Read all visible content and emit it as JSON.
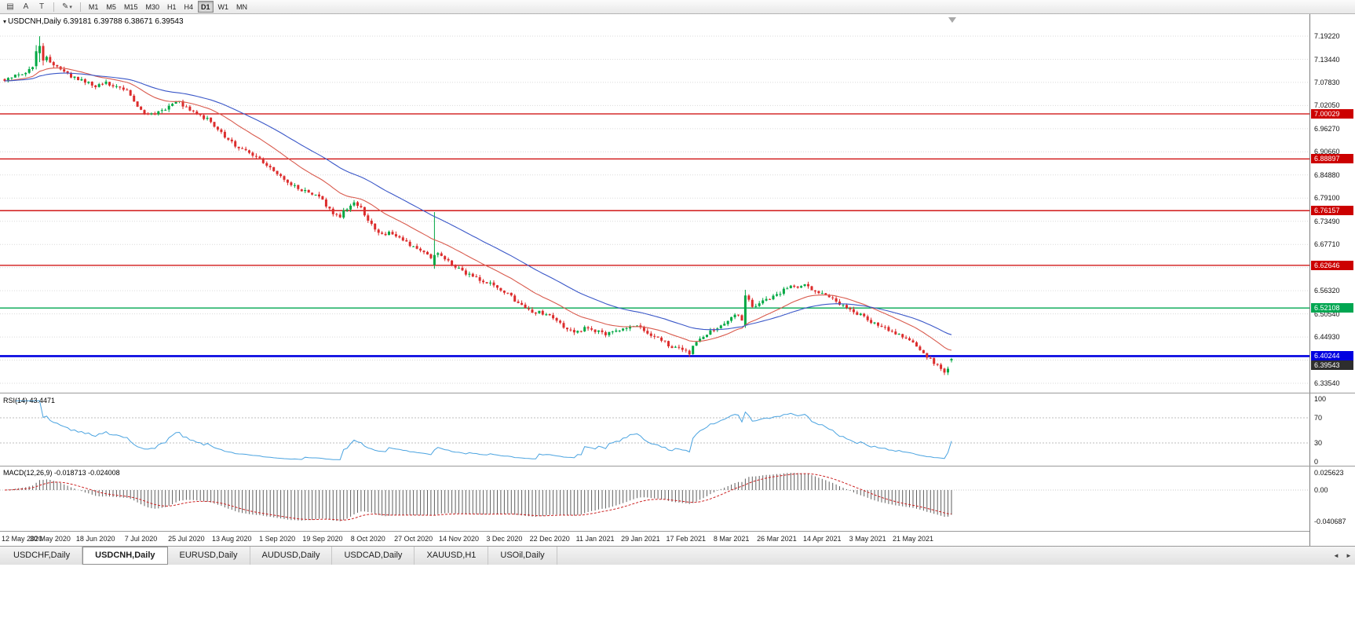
{
  "toolbar": {
    "icons": [
      {
        "name": "chart-window-icon",
        "glyph": "▤"
      },
      {
        "name": "cursor-tool-icon",
        "glyph": "A"
      },
      {
        "name": "text-tool-icon",
        "glyph": "T"
      },
      {
        "name": "draw-tool-icon",
        "glyph": "✎"
      },
      {
        "name": "dropdown-caret-icon",
        "glyph": "▾"
      }
    ],
    "timeframes": [
      {
        "label": "M1"
      },
      {
        "label": "M5"
      },
      {
        "label": "M15"
      },
      {
        "label": "M30"
      },
      {
        "label": "H1"
      },
      {
        "label": "H4"
      },
      {
        "label": "D1",
        "active": true
      },
      {
        "label": "W1"
      },
      {
        "label": "MN"
      }
    ]
  },
  "chart": {
    "dropdown_glyph": "▾",
    "symbol_period": "USDCNH,Daily",
    "ohlc_text": "6.39181 6.39788 6.38671 6.39543"
  },
  "rsi_panel": {
    "label": "RSI(14)",
    "value": "43.4471",
    "axis_labels": [
      "100",
      "70",
      "30",
      "0"
    ],
    "levels": [
      100,
      70,
      30,
      0
    ]
  },
  "macd_panel": {
    "label": "MACD(12,26,9)",
    "values": "-0.018713 -0.024008",
    "axis_labels": [
      "0.025623",
      "0.00",
      "-0.040687"
    ]
  },
  "tabs": [
    {
      "label": "USDCHF,Daily"
    },
    {
      "label": "USDCNH,Daily",
      "active": true
    },
    {
      "label": "EURUSD,Daily"
    },
    {
      "label": "AUDUSD,Daily"
    },
    {
      "label": "USDCAD,Daily"
    },
    {
      "label": "XAUUSD,H1"
    },
    {
      "label": "USOil,Daily"
    }
  ],
  "tab_scroll": {
    "left": "◄",
    "right": "►"
  },
  "chart_data": {
    "type": "candlestick",
    "symbol": "USDCNH",
    "timeframe": "Daily",
    "count": 272,
    "label_every": 13,
    "price_top": 7.1922,
    "price_bottom": 6.3354,
    "up_color": "#00a843",
    "down_color": "#dc2c2c",
    "y_labels": [
      "7.19220",
      "7.13440",
      "7.07830",
      "7.02050",
      "6.96270",
      "6.90660",
      "6.84880",
      "6.79100",
      "6.73490",
      "6.67710",
      "6.62100",
      "6.56320",
      "6.50540",
      "6.44930",
      "6.39150",
      "6.33540"
    ],
    "x_labels": [
      "12 May 2020",
      "30 May 2020",
      "18 Jun 2020",
      "7 Jul 2020",
      "25 Jul 2020",
      "13 Aug 2020",
      "1 Sep 2020",
      "19 Sep 2020",
      "8 Oct 2020",
      "27 Oct 2020",
      "14 Nov 2020",
      "3 Dec 2020",
      "22 Dec 2020",
      "11 Jan 2021",
      "29 Jan 2021",
      "17 Feb 2021",
      "8 Mar 2021",
      "26 Mar 2021",
      "14 Apr 2021",
      "3 May 2021",
      "21 May 2021"
    ],
    "hlines": [
      {
        "price": 7.00029,
        "label": "7.00029",
        "color": "#cc0000",
        "width": 1.3
      },
      {
        "price": 6.88897,
        "label": "6.88897",
        "color": "#cc0000",
        "width": 1.3
      },
      {
        "price": 6.76157,
        "label": "6.76157",
        "color": "#cc0000",
        "width": 1.3
      },
      {
        "price": 6.62646,
        "label": "6.62646",
        "color": "#cc0000",
        "width": 1.3
      },
      {
        "price": 6.52108,
        "label": "6.52108",
        "color": "#00a651",
        "width": 1.3
      },
      {
        "price": 6.40244,
        "label": "6.40244",
        "color": "#0000e0",
        "width": 2.6
      }
    ],
    "current_price": {
      "label": "6.39543",
      "price": 6.39543,
      "bg": "#2e2e2e"
    },
    "last_bar": {
      "open": 6.39181,
      "high": 6.39788,
      "low": 6.38671,
      "close": 6.39543
    },
    "price_path": [
      [
        0,
        7.085
      ],
      [
        4,
        7.098
      ],
      [
        8,
        7.112
      ],
      [
        10,
        7.165
      ],
      [
        12,
        7.14
      ],
      [
        14,
        7.118
      ],
      [
        17,
        7.103
      ],
      [
        20,
        7.089
      ],
      [
        23,
        7.081
      ],
      [
        26,
        7.068
      ],
      [
        29,
        7.076
      ],
      [
        32,
        7.07
      ],
      [
        35,
        7.058
      ],
      [
        37,
        7.031
      ],
      [
        39,
        7.006
      ],
      [
        42,
        6.999
      ],
      [
        45,
        7.008
      ],
      [
        48,
        7.024
      ],
      [
        50,
        7.031
      ],
      [
        52,
        7.014
      ],
      [
        55,
        6.999
      ],
      [
        58,
        6.988
      ],
      [
        61,
        6.963
      ],
      [
        64,
        6.938
      ],
      [
        67,
        6.917
      ],
      [
        70,
        6.902
      ],
      [
        73,
        6.888
      ],
      [
        76,
        6.864
      ],
      [
        78,
        6.848
      ],
      [
        81,
        6.833
      ],
      [
        84,
        6.818
      ],
      [
        87,
        6.803
      ],
      [
        90,
        6.793
      ],
      [
        92,
        6.776
      ],
      [
        94,
        6.752
      ],
      [
        96,
        6.749
      ],
      [
        98,
        6.769
      ],
      [
        100,
        6.781
      ],
      [
        102,
        6.767
      ],
      [
        104,
        6.737
      ],
      [
        106,
        6.716
      ],
      [
        108,
        6.701
      ],
      [
        110,
        6.707
      ],
      [
        112,
        6.697
      ],
      [
        114,
        6.688
      ],
      [
        116,
        6.677
      ],
      [
        118,
        6.664
      ],
      [
        120,
        6.656
      ],
      [
        122,
        6.648
      ],
      [
        123,
        6.652
      ],
      [
        124,
        6.66
      ],
      [
        126,
        6.641
      ],
      [
        128,
        6.627
      ],
      [
        130,
        6.617
      ],
      [
        133,
        6.603
      ],
      [
        136,
        6.592
      ],
      [
        139,
        6.582
      ],
      [
        141,
        6.572
      ],
      [
        143,
        6.561
      ],
      [
        145,
        6.548
      ],
      [
        147,
        6.533
      ],
      [
        149,
        6.522
      ],
      [
        151,
        6.507
      ],
      [
        153,
        6.513
      ],
      [
        156,
        6.501
      ],
      [
        158,
        6.49
      ],
      [
        160,
        6.477
      ],
      [
        162,
        6.467
      ],
      [
        164,
        6.461
      ],
      [
        166,
        6.472
      ],
      [
        169,
        6.465
      ],
      [
        172,
        6.457
      ],
      [
        175,
        6.462
      ],
      [
        178,
        6.472
      ],
      [
        180,
        6.477
      ],
      [
        182,
        6.47
      ],
      [
        184,
        6.457
      ],
      [
        186,
        6.45
      ],
      [
        188,
        6.441
      ],
      [
        190,
        6.431
      ],
      [
        192,
        6.422
      ],
      [
        194,
        6.415
      ],
      [
        196,
        6.41
      ],
      [
        198,
        6.437
      ],
      [
        200,
        6.451
      ],
      [
        202,
        6.463
      ],
      [
        204,
        6.473
      ],
      [
        206,
        6.484
      ],
      [
        208,
        6.496
      ],
      [
        210,
        6.506
      ],
      [
        211,
        6.492
      ],
      [
        212,
        6.552
      ],
      [
        214,
        6.526
      ],
      [
        216,
        6.534
      ],
      [
        218,
        6.542
      ],
      [
        221,
        6.552
      ],
      [
        223,
        6.565
      ],
      [
        225,
        6.577
      ],
      [
        227,
        6.57
      ],
      [
        229,
        6.576
      ],
      [
        231,
        6.567
      ],
      [
        234,
        6.557
      ],
      [
        236,
        6.547
      ],
      [
        238,
        6.537
      ],
      [
        240,
        6.527
      ],
      [
        242,
        6.517
      ],
      [
        244,
        6.507
      ],
      [
        246,
        6.5
      ],
      [
        248,
        6.487
      ],
      [
        250,
        6.479
      ],
      [
        252,
        6.47
      ],
      [
        254,
        6.46
      ],
      [
        256,
        6.453
      ],
      [
        258,
        6.444
      ],
      [
        260,
        6.437
      ],
      [
        262,
        6.421
      ],
      [
        264,
        6.403
      ],
      [
        266,
        6.386
      ],
      [
        268,
        6.369
      ],
      [
        269,
        6.361
      ],
      [
        270,
        6.373
      ],
      [
        271,
        6.3954
      ]
    ],
    "notable_bars": [
      {
        "i": 9,
        "o": 7.118,
        "h": 7.17,
        "l": 7.11,
        "c": 7.155
      },
      {
        "i": 10,
        "o": 7.15,
        "h": 7.192,
        "l": 7.128,
        "c": 7.168
      },
      {
        "i": 11,
        "o": 7.168,
        "h": 7.175,
        "l": 7.12,
        "c": 7.132
      },
      {
        "i": 123,
        "o": 6.628,
        "h": 6.758,
        "l": 6.618,
        "c": 6.652
      },
      {
        "i": 212,
        "o": 6.478,
        "h": 6.566,
        "l": 6.472,
        "c": 6.552
      },
      {
        "i": 271,
        "o": 6.39181,
        "h": 6.39788,
        "l": 6.38671,
        "c": 6.39543
      }
    ],
    "moving_averages": [
      {
        "name": "fast-ma-line",
        "period": 20,
        "color": "#d95b4e"
      },
      {
        "name": "slow-ma-line",
        "period": 45,
        "color": "#3a57c8"
      }
    ],
    "indicators": {
      "rsi": {
        "period": 14,
        "current": 43.4471,
        "color": "#4aa3e0"
      },
      "macd": {
        "fast": 12,
        "slow": 26,
        "signal": 9,
        "current_macd": -0.018713,
        "current_signal": -0.024008,
        "histogram_color": "#5f5f5f",
        "signal_color": "#cc2222",
        "axis_max": 0.025623,
        "axis_min": -0.040687
      }
    }
  }
}
